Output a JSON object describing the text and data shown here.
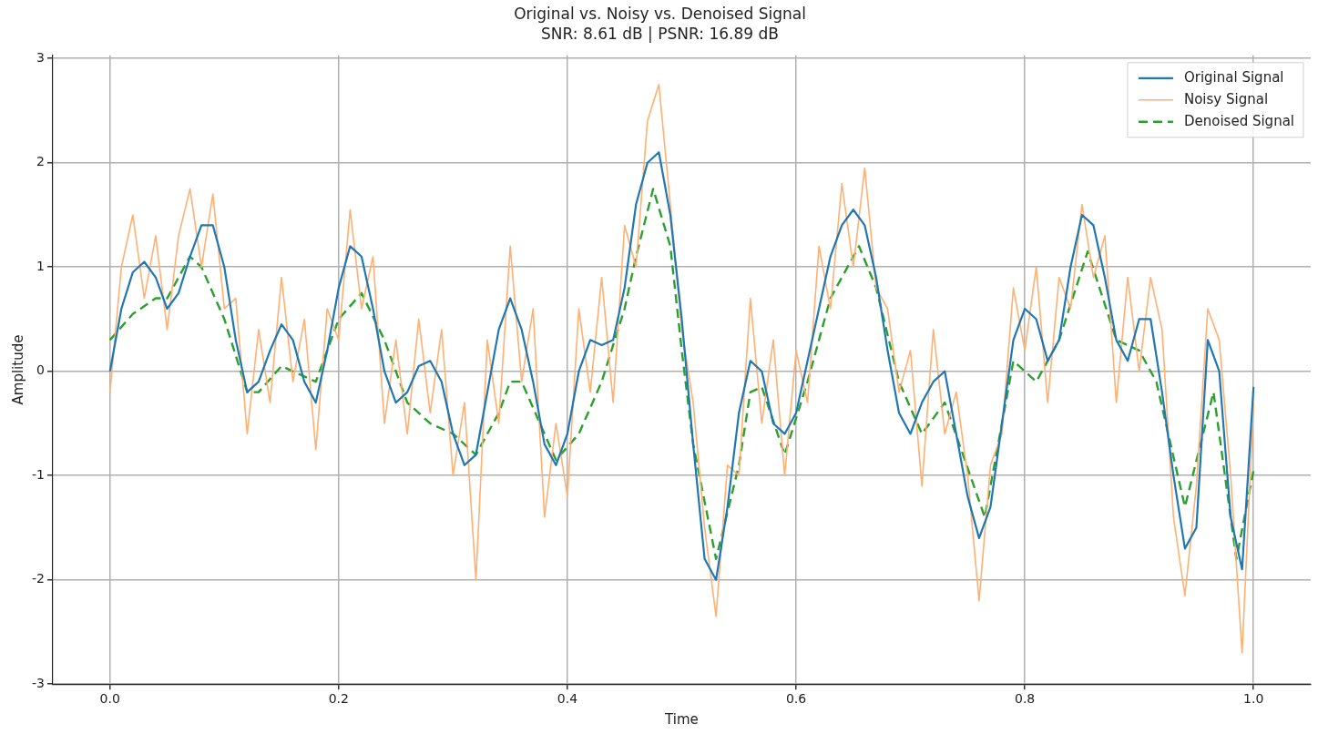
{
  "chart_data": {
    "type": "line",
    "title": "Original vs. Noisy vs. Denoised Signal",
    "subtitle": "SNR: 8.61 dB | PSNR: 16.89 dB",
    "xlabel": "Time",
    "ylabel": "Amplitude",
    "xlim": [
      -0.05,
      1.05
    ],
    "xticks": [
      {
        "value": 0,
        "label": "0.0"
      },
      0.2,
      0.4,
      0.6,
      0.8,
      {
        "value": 1,
        "label": "1.0"
      }
    ],
    "ylim": [
      -3,
      3.03
    ],
    "yticks": [
      -3,
      -2,
      -1,
      0,
      1,
      2,
      3
    ],
    "grid": true,
    "legend": "top right",
    "marker": "none",
    "series": [
      {
        "name": "Original Signal",
        "color": "#1f77b4",
        "line_style": "solid",
        "x": [
          0,
          0.01,
          0.02,
          0.03,
          0.04,
          0.05,
          0.06,
          0.07,
          0.08,
          0.09,
          0.1,
          0.11,
          0.12,
          0.13,
          0.14,
          0.15,
          0.16,
          0.17,
          0.18,
          0.19,
          0.2,
          0.21,
          0.22,
          0.23,
          0.24,
          0.25,
          0.26,
          0.27,
          0.28,
          0.29,
          0.3,
          0.31,
          0.32,
          0.33,
          0.34,
          0.35,
          0.36,
          0.37,
          0.38,
          0.39,
          0.4,
          0.41,
          0.42,
          0.43,
          0.44,
          0.45,
          0.46,
          0.47,
          0.48,
          0.49,
          0.5,
          0.51,
          0.52,
          0.53,
          0.54,
          0.55,
          0.56,
          0.57,
          0.58,
          0.59,
          0.6,
          0.61,
          0.62,
          0.63,
          0.64,
          0.65,
          0.66,
          0.67,
          0.68,
          0.69,
          0.7,
          0.71,
          0.72,
          0.73,
          0.74,
          0.75,
          0.76,
          0.77,
          0.78,
          0.79,
          0.8,
          0.81,
          0.82,
          0.83,
          0.84,
          0.85,
          0.86,
          0.87,
          0.88,
          0.89,
          0.9,
          0.91,
          0.92,
          0.93,
          0.94,
          0.95,
          0.96,
          0.97,
          0.98,
          0.99,
          1
        ],
        "values": [
          0,
          0.6,
          0.95,
          1.05,
          0.9,
          0.6,
          0.75,
          1.1,
          1.4,
          1.4,
          1,
          0.3,
          -0.2,
          -0.1,
          0.2,
          0.45,
          0.3,
          -0.1,
          -0.3,
          0.2,
          0.8,
          1.2,
          1.1,
          0.6,
          0,
          -0.3,
          -0.2,
          0.05,
          0.1,
          -0.1,
          -0.6,
          -0.9,
          -0.8,
          -0.2,
          0.4,
          0.7,
          0.4,
          -0.1,
          -0.7,
          -0.9,
          -0.6,
          0,
          0.3,
          0.25,
          0.3,
          0.8,
          1.6,
          2,
          2.1,
          1.5,
          0.5,
          -0.7,
          -1.8,
          -2,
          -1.3,
          -0.4,
          0.1,
          0,
          -0.5,
          -0.6,
          -0.4,
          0.1,
          0.6,
          1.1,
          1.4,
          1.55,
          1.4,
          0.9,
          0.2,
          -0.4,
          -0.6,
          -0.3,
          -0.1,
          0,
          -0.6,
          -1.2,
          -1.6,
          -1.3,
          -0.5,
          0.3,
          0.6,
          0.5,
          0.1,
          0.3,
          1,
          1.5,
          1.4,
          0.9,
          0.3,
          0.1,
          0.5,
          0.5,
          -0.2,
          -1,
          -1.7,
          -1.5,
          0.3,
          0,
          -1.4,
          -1.9,
          -0.15
        ]
      },
      {
        "name": "Noisy Signal",
        "color": "#ffb072",
        "line_style": "solid",
        "x": [
          0,
          0.01,
          0.02,
          0.03,
          0.04,
          0.05,
          0.06,
          0.07,
          0.08,
          0.09,
          0.1,
          0.11,
          0.12,
          0.13,
          0.14,
          0.15,
          0.16,
          0.17,
          0.18,
          0.19,
          0.2,
          0.21,
          0.22,
          0.23,
          0.24,
          0.25,
          0.26,
          0.27,
          0.28,
          0.29,
          0.3,
          0.31,
          0.32,
          0.33,
          0.34,
          0.35,
          0.36,
          0.37,
          0.38,
          0.39,
          0.4,
          0.41,
          0.42,
          0.43,
          0.44,
          0.45,
          0.46,
          0.47,
          0.48,
          0.49,
          0.5,
          0.51,
          0.52,
          0.53,
          0.54,
          0.55,
          0.56,
          0.57,
          0.58,
          0.59,
          0.6,
          0.61,
          0.62,
          0.63,
          0.64,
          0.65,
          0.66,
          0.67,
          0.68,
          0.69,
          0.7,
          0.71,
          0.72,
          0.73,
          0.74,
          0.75,
          0.76,
          0.77,
          0.78,
          0.79,
          0.8,
          0.81,
          0.82,
          0.83,
          0.84,
          0.85,
          0.86,
          0.87,
          0.88,
          0.89,
          0.9,
          0.91,
          0.92,
          0.93,
          0.94,
          0.95,
          0.96,
          0.97,
          0.98,
          0.99,
          1
        ],
        "values": [
          -0.2,
          1,
          1.5,
          0.7,
          1.3,
          0.4,
          1.3,
          1.75,
          1,
          1.7,
          0.6,
          0.7,
          -0.6,
          0.4,
          -0.3,
          0.9,
          -0.1,
          0.5,
          -0.75,
          0.6,
          0.3,
          1.55,
          0.6,
          1.1,
          -0.5,
          0.3,
          -0.6,
          0.5,
          -0.4,
          0.4,
          -1,
          -0.3,
          -2,
          0.3,
          -0.5,
          1.2,
          -0.1,
          0.6,
          -1.4,
          -0.5,
          -1.2,
          0.6,
          -0.2,
          0.9,
          -0.3,
          1.4,
          1,
          2.4,
          2.75,
          1.6,
          0.4,
          -0.3,
          -1.5,
          -2.35,
          -0.9,
          -1,
          0.7,
          -0.5,
          0.3,
          -1,
          0.2,
          -0.3,
          1.2,
          0.6,
          1.8,
          1,
          1.95,
          0.8,
          0.6,
          -0.2,
          0.2,
          -1.1,
          0.4,
          -0.6,
          -0.2,
          -1,
          -2.2,
          -0.9,
          -0.6,
          0.8,
          0.2,
          1,
          -0.3,
          0.9,
          0.6,
          1.6,
          0.9,
          1.3,
          -0.3,
          0.9,
          0,
          0.9,
          0.4,
          -1.4,
          -2.15,
          -1.1,
          0.6,
          0.3,
          -1,
          -2.7,
          -0.3
        ]
      },
      {
        "name": "Denoised Signal",
        "color": "#2ca02c",
        "line_style": "dashed",
        "x": [
          0,
          0.02,
          0.04,
          0.05,
          0.07,
          0.08,
          0.1,
          0.12,
          0.13,
          0.15,
          0.17,
          0.18,
          0.2,
          0.22,
          0.24,
          0.26,
          0.28,
          0.3,
          0.32,
          0.34,
          0.35,
          0.36,
          0.38,
          0.39,
          0.41,
          0.43,
          0.45,
          0.46,
          0.475,
          0.49,
          0.5,
          0.51,
          0.53,
          0.55,
          0.56,
          0.57,
          0.59,
          0.61,
          0.63,
          0.655,
          0.67,
          0.69,
          0.71,
          0.73,
          0.765,
          0.79,
          0.81,
          0.83,
          0.855,
          0.88,
          0.9,
          0.915,
          0.94,
          0.965,
          0.985,
          1
        ],
        "values": [
          0.3,
          0.55,
          0.7,
          0.7,
          1.1,
          1,
          0.5,
          -0.2,
          -0.2,
          0.05,
          -0.05,
          -0.1,
          0.5,
          0.75,
          0.3,
          -0.3,
          -0.5,
          -0.6,
          -0.8,
          -0.4,
          -0.1,
          -0.1,
          -0.6,
          -0.85,
          -0.6,
          -0.1,
          0.6,
          1.1,
          1.75,
          1.2,
          0.2,
          -0.7,
          -1.8,
          -0.9,
          -0.2,
          -0.15,
          -0.8,
          -0.1,
          0.7,
          1.2,
          0.8,
          -0.1,
          -0.6,
          -0.3,
          -1.4,
          0.1,
          -0.1,
          0.3,
          1.15,
          0.3,
          0.2,
          -0.1,
          -1.3,
          -0.2,
          -1.8,
          -0.95
        ]
      }
    ]
  }
}
